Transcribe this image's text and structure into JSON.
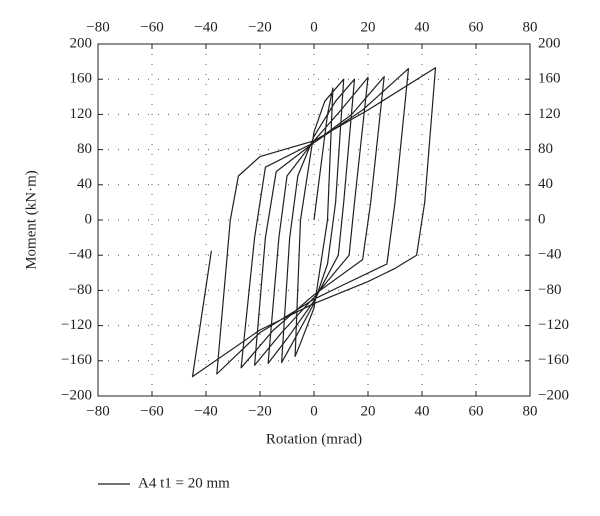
{
  "chart_data": {
    "type": "line",
    "x_label": "Rotation (mrad)",
    "y_label": "Moment (kN·m)",
    "xlim": [
      -80,
      80
    ],
    "xticks": [
      {
        "value": -80,
        "label": "−80"
      },
      {
        "value": -60,
        "label": "−60"
      },
      {
        "value": -40,
        "label": "−40"
      },
      {
        "value": -20,
        "label": "−20"
      },
      0,
      20,
      40,
      60,
      80
    ],
    "ylim": [
      -200,
      200
    ],
    "yticks": [
      {
        "value": -200,
        "label": "−200"
      },
      {
        "value": -160,
        "label": "−160"
      },
      {
        "value": -120,
        "label": "−120"
      },
      {
        "value": -80,
        "label": "−80"
      },
      {
        "value": -40,
        "label": "−40"
      },
      0,
      40,
      80,
      120,
      160,
      200
    ],
    "grid": true,
    "legend": "bottom-left",
    "series": [
      {
        "name": "A4 t1 = 20 mm",
        "color": "#231f20",
        "x": [
          0,
          5,
          7,
          5,
          0,
          -5,
          -7,
          -5,
          0,
          4,
          11,
          8,
          5,
          0,
          -8,
          -12,
          -9,
          -6,
          0,
          8,
          15,
          11,
          9,
          0,
          -10,
          -17,
          -13,
          -10,
          0,
          10,
          20,
          15,
          13,
          0,
          -12,
          -22,
          -18,
          -14,
          0,
          14,
          26,
          21,
          18,
          0,
          -15,
          -27,
          -22,
          -18,
          0,
          18,
          35,
          30,
          27,
          10,
          0,
          -20,
          -36,
          -31,
          -28,
          -20,
          0,
          20,
          45,
          41,
          38,
          30,
          20,
          0,
          -20,
          -45,
          -38
        ],
        "values": [
          0,
          120,
          150,
          0,
          -100,
          -140,
          -155,
          0,
          100,
          135,
          160,
          20,
          -50,
          -95,
          -140,
          -162,
          -20,
          50,
          95,
          135,
          160,
          20,
          -40,
          -92,
          -135,
          -163,
          -20,
          50,
          90,
          125,
          162,
          20,
          -40,
          -88,
          -128,
          -165,
          -20,
          55,
          88,
          120,
          163,
          20,
          -45,
          -85,
          -125,
          -168,
          -20,
          60,
          88,
          125,
          172,
          20,
          -50,
          -75,
          -90,
          -128,
          -175,
          0,
          50,
          72,
          90,
          125,
          173,
          20,
          -40,
          -55,
          -70,
          -95,
          -125,
          -178,
          -35
        ]
      }
    ]
  }
}
